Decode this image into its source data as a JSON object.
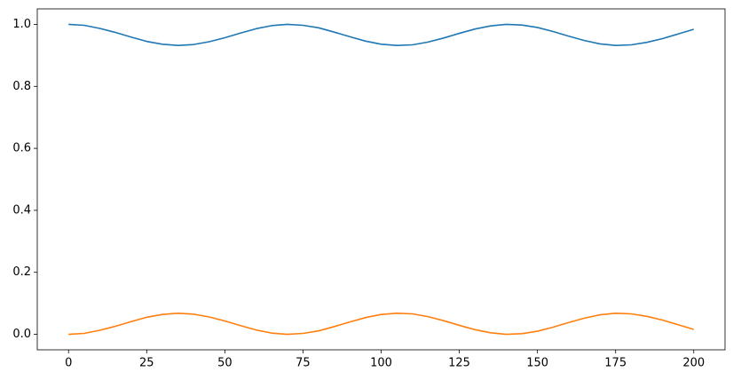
{
  "chart_data": {
    "type": "line",
    "x": [
      0,
      5,
      10,
      15,
      20,
      25,
      30,
      35,
      40,
      45,
      50,
      55,
      60,
      65,
      70,
      75,
      80,
      85,
      90,
      95,
      100,
      105,
      110,
      115,
      120,
      125,
      130,
      135,
      140,
      145,
      150,
      155,
      160,
      165,
      170,
      175,
      180,
      185,
      190,
      195,
      200
    ],
    "series": [
      {
        "color": "#1f77b4",
        "values": [
          1.0,
          0.997,
          0.987,
          0.974,
          0.959,
          0.945,
          0.936,
          0.932,
          0.935,
          0.944,
          0.957,
          0.972,
          0.986,
          0.996,
          1.0,
          0.997,
          0.989,
          0.975,
          0.96,
          0.946,
          0.936,
          0.932,
          0.934,
          0.943,
          0.956,
          0.971,
          0.985,
          0.995,
          1.0,
          0.998,
          0.99,
          0.977,
          0.962,
          0.948,
          0.937,
          0.932,
          0.934,
          0.942,
          0.954,
          0.969,
          0.984
        ]
      },
      {
        "color": "#ff7f0e",
        "values": [
          0.0,
          0.003,
          0.013,
          0.026,
          0.041,
          0.055,
          0.064,
          0.068,
          0.065,
          0.056,
          0.043,
          0.028,
          0.014,
          0.004,
          0.0,
          0.003,
          0.011,
          0.025,
          0.04,
          0.054,
          0.064,
          0.068,
          0.066,
          0.057,
          0.044,
          0.029,
          0.015,
          0.005,
          0.0,
          0.002,
          0.01,
          0.023,
          0.038,
          0.052,
          0.063,
          0.068,
          0.066,
          0.058,
          0.046,
          0.031,
          0.016
        ]
      }
    ],
    "xlim": [
      -10,
      210
    ],
    "xticks": [
      0,
      25,
      50,
      75,
      100,
      125,
      150,
      175,
      200
    ],
    "ylim": [
      -0.05,
      1.05
    ],
    "yticks": [
      {
        "value": 0,
        "label": "0.0"
      },
      0.2,
      0.4,
      0.6,
      0.8,
      {
        "value": 1,
        "label": "1.0"
      }
    ],
    "grid": false
  }
}
